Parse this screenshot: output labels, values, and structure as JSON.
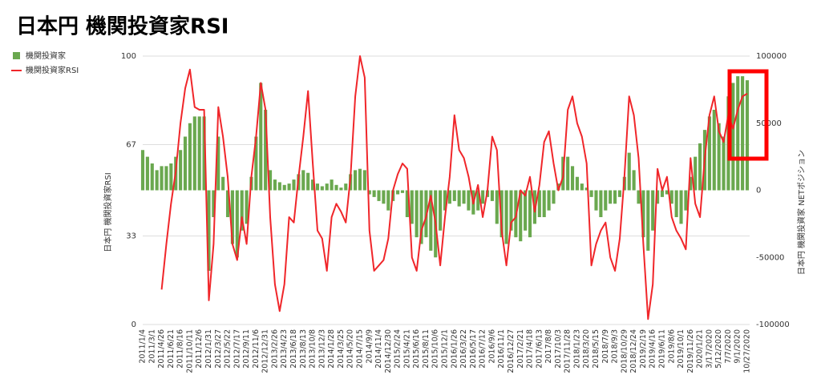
{
  "chart_data": {
    "type": "combo",
    "title": "日本円 機関投資家RSI",
    "y_label": "日本円 機関投資家RSI",
    "y2_label": "日本円 機関投資家 NETポジション",
    "categories": [
      "2011/1/4",
      null,
      "2011/3/1",
      null,
      "2011/4/26",
      null,
      "2011/6/21",
      null,
      "2011/8/16",
      null,
      "2011/10/11",
      null,
      "2011/12/6",
      null,
      "2012/1/31",
      null,
      "2012/3/27",
      null,
      "2012/5/22",
      null,
      "2012/7/17",
      null,
      "2012/9/11",
      null,
      "2012/11/6",
      null,
      "2012/12/31",
      null,
      "2013/2/26",
      null,
      "2013/4/23",
      null,
      "2013/6/18",
      null,
      "2013/8/13",
      null,
      "2013/10/8",
      null,
      "2013/12/3",
      null,
      "2014/1/28",
      null,
      "2014/3/25",
      null,
      "2014/5/20",
      null,
      "2014/7/15",
      null,
      "2014/9/9",
      null,
      "2014/11/4",
      null,
      "2014/12/30",
      null,
      "2015/2/24",
      null,
      "2015/4/21",
      null,
      "2015/6/16",
      null,
      "2015/8/11",
      null,
      "2015/10/6",
      null,
      "2015/12/1",
      null,
      "2016/1/26",
      null,
      "2016/3/22",
      null,
      "2016/5/17",
      null,
      "2016/7/12",
      null,
      "2016/9/6",
      null,
      "2016/11/1",
      null,
      "2016/12/27",
      null,
      "2017/2/21",
      null,
      "2017/4/18",
      null,
      "2017/6/13",
      null,
      "2017/8/8",
      null,
      "2017/10/3",
      null,
      "2017/11/28",
      null,
      "2018/1/23",
      null,
      "2018/3/20",
      null,
      "2018/5/15",
      null,
      "2018/7/9",
      null,
      "2018/9/3",
      null,
      "2018/10/29",
      null,
      "2018/12/24",
      null,
      "2019/2/19",
      null,
      "2019/4/16",
      null,
      "2019/6/11",
      null,
      "2019/8/6",
      null,
      "2019/10/1",
      null,
      "2019/11/26",
      null,
      "2020/1/21",
      null,
      "3/17/2020",
      null,
      "5/12/2020",
      null,
      "7/7/2020",
      null,
      "9/1/2020",
      null,
      "10/27/2020"
    ],
    "series": [
      {
        "name": "機関投資家",
        "type": "bar",
        "axis": "y2",
        "color": "#6aa84f",
        "values": [
          30000,
          25000,
          20000,
          15000,
          18000,
          18000,
          20000,
          25000,
          30000,
          40000,
          50000,
          55000,
          55000,
          55000,
          -60000,
          -20000,
          40000,
          10000,
          -20000,
          -40000,
          -50000,
          -30000,
          -25000,
          10000,
          40000,
          80000,
          60000,
          15000,
          8000,
          6000,
          4000,
          5000,
          8000,
          12000,
          15000,
          13000,
          8000,
          5000,
          3000,
          5000,
          8000,
          4000,
          2000,
          5000,
          12000,
          15000,
          16000,
          15000,
          -3000,
          -5000,
          -8000,
          -10000,
          -15000,
          -8000,
          -3000,
          -2000,
          -20000,
          -25000,
          -35000,
          -40000,
          -35000,
          -45000,
          -50000,
          -30000,
          -15000,
          -10000,
          -8000,
          -12000,
          -10000,
          -15000,
          -18000,
          -15000,
          -10000,
          -5000,
          -8000,
          -25000,
          -35000,
          -40000,
          -30000,
          -35000,
          -38000,
          -30000,
          -35000,
          -25000,
          -20000,
          -20000,
          -15000,
          -10000,
          5000,
          25000,
          25000,
          18000,
          10000,
          5000,
          2000,
          -5000,
          -15000,
          -20000,
          -15000,
          -10000,
          -10000,
          -5000,
          10000,
          28000,
          15000,
          -10000,
          -35000,
          -45000,
          -30000,
          -10000,
          -5000,
          -3000,
          -10000,
          -20000,
          -25000,
          -15000,
          10000,
          25000,
          35000,
          45000,
          55000,
          60000,
          50000,
          40000,
          70000,
          80000,
          85000,
          85000,
          82000
        ]
      },
      {
        "name": "機関投資家RSI",
        "type": "line",
        "axis": "y",
        "color": "#f0262a",
        "values": [
          null,
          null,
          null,
          null,
          13,
          30,
          45,
          57,
          75,
          88,
          95,
          81,
          80,
          80,
          9,
          30,
          81,
          70,
          55,
          30,
          24,
          40,
          30,
          55,
          70,
          90,
          80,
          40,
          15,
          5,
          15,
          40,
          38,
          55,
          70,
          87,
          60,
          35,
          32,
          20,
          40,
          45,
          42,
          38,
          55,
          85,
          100,
          92,
          35,
          20,
          22,
          24,
          32,
          50,
          56,
          60,
          58,
          25,
          20,
          35,
          40,
          48,
          38,
          22,
          40,
          55,
          78,
          65,
          62,
          55,
          45,
          52,
          40,
          50,
          70,
          65,
          35,
          22,
          38,
          40,
          50,
          48,
          55,
          42,
          52,
          68,
          72,
          60,
          50,
          55,
          80,
          85,
          75,
          70,
          60,
          22,
          30,
          35,
          38,
          25,
          20,
          32,
          55,
          85,
          78,
          62,
          30,
          2,
          15,
          58,
          50,
          55,
          40,
          35,
          32,
          28,
          62,
          45,
          40,
          62,
          78,
          85,
          72,
          68,
          78,
          73,
          80,
          85,
          86
        ]
      }
    ],
    "ylim": [
      0,
      100
    ],
    "yticks": [
      0,
      33,
      67,
      100
    ],
    "y2lim": [
      -100000,
      100000
    ],
    "y2ticks": [
      -100000,
      -50000,
      0,
      50000,
      100000
    ],
    "grid": true
  }
}
